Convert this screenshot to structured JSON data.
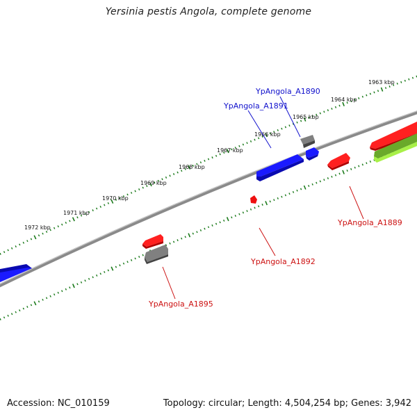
{
  "title": "Yersinia pestis Angola, complete genome",
  "footer": {
    "accession": "Accession: NC_010159",
    "summary": "Topology: circular; Length: 4,504,254 bp; Genes: 3,942"
  },
  "colors": {
    "forward": "#1010ee",
    "reverse": "#ee1010",
    "other": "#707070",
    "rna_dark": "#5f9f1f",
    "rna_light": "#a8f048",
    "backbone": "#8a8a8a",
    "tick": "#1a7a1a",
    "label_blue": "#1010cc",
    "label_red": "#cc1010"
  },
  "ticks": [
    {
      "label": "1963 kbp"
    },
    {
      "label": "1964 kbp"
    },
    {
      "label": "1965 kbp"
    },
    {
      "label": "1966 kbp"
    },
    {
      "label": "1967 kbp"
    },
    {
      "label": "1968 kbp"
    },
    {
      "label": "1969 kbp"
    },
    {
      "label": "1970 kbp"
    },
    {
      "label": "1971 kbp"
    },
    {
      "label": "1972 kbp"
    }
  ],
  "gene_labels": [
    {
      "text": "YpAngola_A1890",
      "strand": "forward"
    },
    {
      "text": "YpAngola_A1891",
      "strand": "forward"
    },
    {
      "text": "YpAngola_A1889",
      "strand": "reverse"
    },
    {
      "text": "YpAngola_A1892",
      "strand": "reverse"
    },
    {
      "text": "YpAngola_A1895",
      "strand": "reverse"
    }
  ]
}
